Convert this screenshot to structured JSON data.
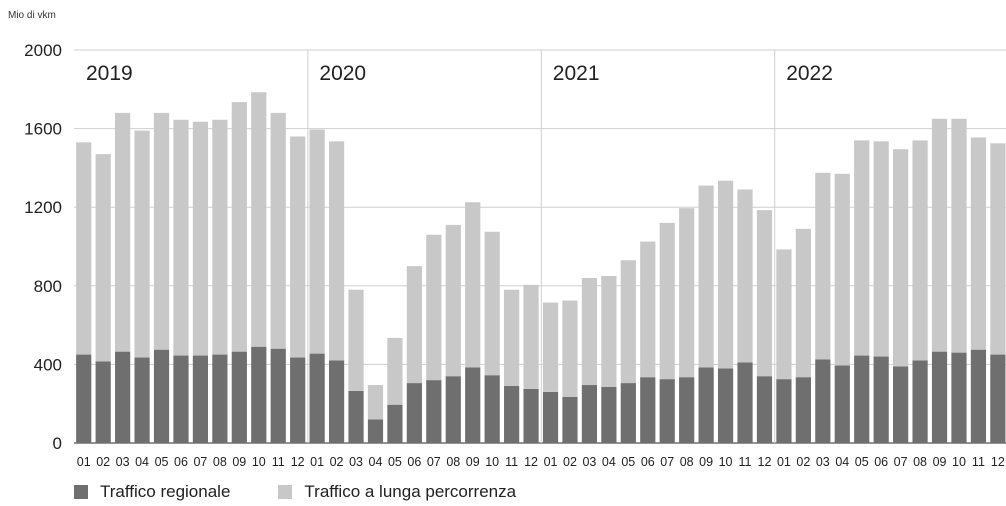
{
  "chart_data": {
    "type": "bar",
    "stacked": true,
    "unit_label": "Mio di vkm",
    "ylim": [
      0,
      2000
    ],
    "yticks": [
      0,
      400,
      800,
      1200,
      1600,
      2000
    ],
    "grid": true,
    "legend_position": "bottom-left",
    "years": [
      "2019",
      "2020",
      "2021",
      "2022"
    ],
    "categories": [
      "01",
      "02",
      "03",
      "04",
      "05",
      "06",
      "07",
      "08",
      "09",
      "10",
      "11",
      "12",
      "01",
      "02",
      "03",
      "04",
      "05",
      "06",
      "07",
      "08",
      "09",
      "10",
      "11",
      "12",
      "01",
      "02",
      "03",
      "04",
      "05",
      "06",
      "07",
      "08",
      "09",
      "10",
      "11",
      "12",
      "01",
      "02",
      "03",
      "04",
      "05",
      "06",
      "07",
      "08",
      "09",
      "10",
      "11",
      "12"
    ],
    "series": [
      {
        "name": "Traffico regionale",
        "color": "#6f6f6f",
        "values": [
          450,
          415,
          465,
          435,
          475,
          445,
          445,
          450,
          465,
          490,
          480,
          435,
          455,
          420,
          265,
          120,
          195,
          305,
          320,
          340,
          385,
          345,
          290,
          275,
          260,
          235,
          295,
          285,
          305,
          335,
          325,
          335,
          385,
          380,
          410,
          340,
          325,
          335,
          425,
          395,
          445,
          440,
          390,
          420,
          465,
          460,
          475,
          450
        ]
      },
      {
        "name": "Traffico a lunga percorrenza",
        "color": "#c8c8c8",
        "values": [
          1080,
          1055,
          1215,
          1155,
          1205,
          1200,
          1190,
          1195,
          1270,
          1295,
          1200,
          1125,
          1140,
          1115,
          515,
          175,
          340,
          595,
          740,
          770,
          840,
          730,
          490,
          530,
          455,
          490,
          545,
          565,
          625,
          690,
          795,
          860,
          925,
          955,
          880,
          845,
          660,
          755,
          950,
          975,
          1095,
          1095,
          1105,
          1120,
          1185,
          1190,
          1080,
          1075
        ]
      }
    ]
  }
}
